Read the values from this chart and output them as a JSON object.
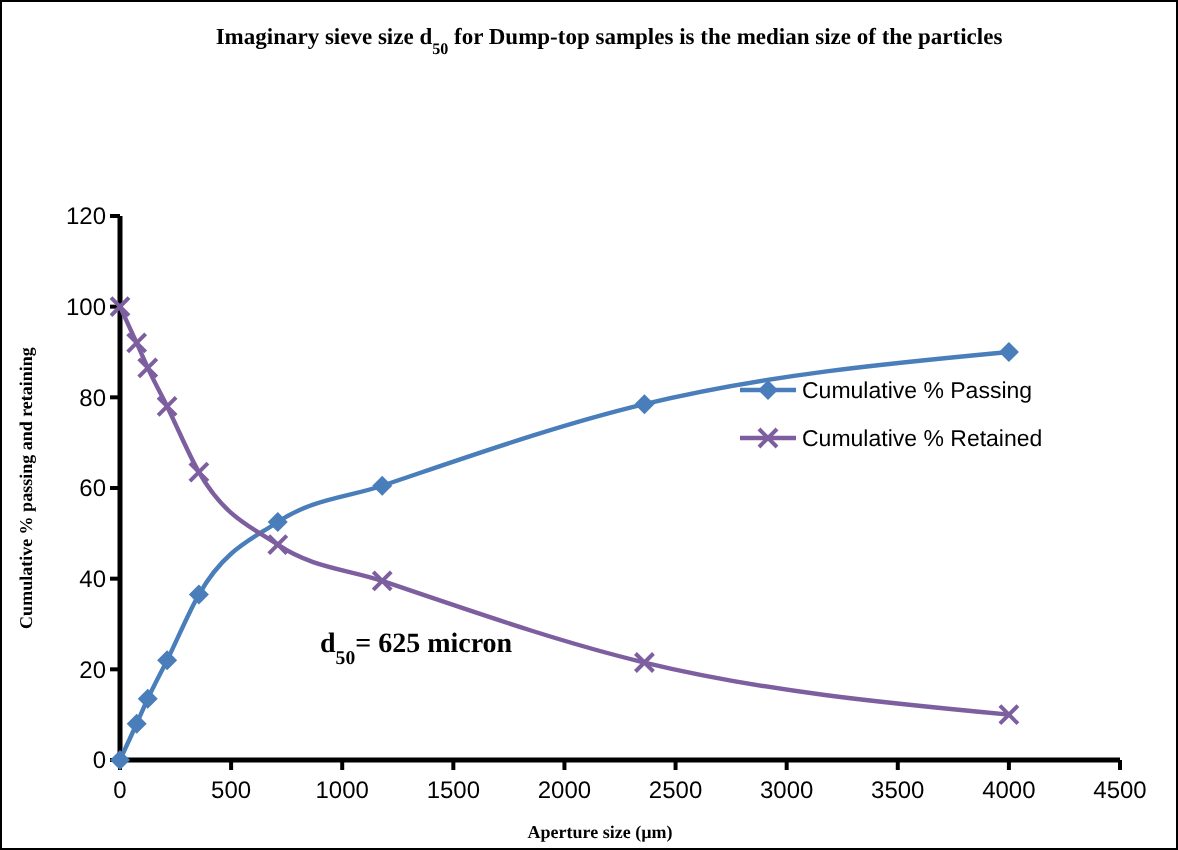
{
  "chart_data": {
    "type": "line",
    "title": "Imaginary sieve size d$_{50}$ for Dump-top samples is the median size of the particles",
    "xlabel": "Aperture size (µm)",
    "ylabel": "Cumulative % passing and retaining",
    "x": [
      0,
      75,
      125,
      212,
      355,
      710,
      1180,
      2360,
      4000
    ],
    "series": [
      {
        "name": "Cumulative % Passing",
        "color": "#4a7ebb",
        "marker": "diamond",
        "values": [
          0,
          8,
          13.5,
          22,
          36.5,
          52.5,
          60.5,
          78.5,
          90
        ]
      },
      {
        "name": "Cumulative % Retained",
        "color": "#7d5fa0",
        "marker": "cross",
        "values": [
          100,
          92,
          86.5,
          78,
          63.5,
          47.5,
          39.5,
          21.5,
          10
        ]
      }
    ],
    "xlim": [
      0,
      4500
    ],
    "xticks": [
      0,
      500,
      1000,
      1500,
      2000,
      2500,
      3000,
      3500,
      4000,
      4500
    ],
    "ylim": [
      0,
      120
    ],
    "yticks": [
      0,
      20,
      40,
      60,
      80,
      100,
      120
    ],
    "grid": false,
    "legend": "right",
    "line_style": "solid",
    "annotations": [
      "d$_{50}$= 625 micron"
    ]
  }
}
